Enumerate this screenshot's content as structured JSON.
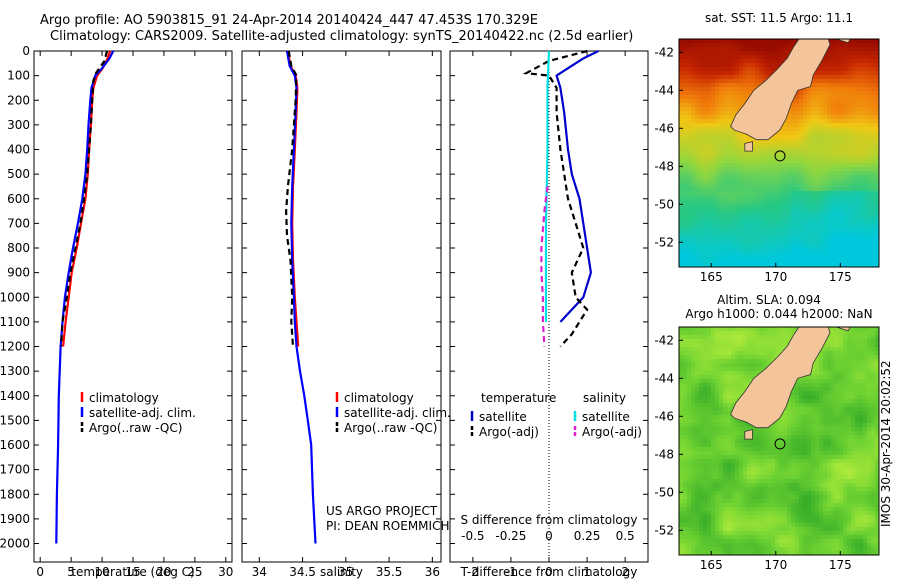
{
  "titles": {
    "line1": "Argo profile: AO 5903815_91 24-Apr-2014 20140424_447 47.453S 170.329E",
    "line2": "Climatology: CARS2009. Satellite-adjusted climatology: synTS_20140422.nc (2.5d earlier)"
  },
  "colors": {
    "climatology": "#ff0000",
    "satellite": "#0000ff",
    "argo": "#000000",
    "t_sat_diff": "#0000cc",
    "s_sat_diff": "#00e0e8",
    "s_argo_diff": "#e020d0",
    "land": "#f4c49a"
  },
  "depth_axis": {
    "ticks": [
      0,
      100,
      200,
      300,
      400,
      500,
      600,
      700,
      800,
      900,
      1000,
      1100,
      1200,
      1300,
      1400,
      1500,
      1600,
      1700,
      1800,
      1900,
      2000
    ],
    "range": [
      0,
      2075
    ]
  },
  "chart_data": [
    {
      "type": "line",
      "panel": "temperature",
      "xlabel": "temperature (deg C)",
      "xlim": [
        -1,
        31
      ],
      "xticks": [
        0,
        5,
        10,
        15,
        20,
        25,
        30
      ],
      "legend": [
        "climatology",
        "satellite-adj. clim.",
        "Argo(..raw -QC)"
      ],
      "series": [
        {
          "name": "climatology",
          "color_key": "climatology",
          "points": [
            [
              11.3,
              0
            ],
            [
              10.9,
              30
            ],
            [
              10.1,
              70
            ],
            [
              9.2,
              100
            ],
            [
              8.6,
              150
            ],
            [
              8.4,
              200
            ],
            [
              8.2,
              300
            ],
            [
              7.9,
              400
            ],
            [
              7.7,
              500
            ],
            [
              7.3,
              600
            ],
            [
              6.6,
              700
            ],
            [
              5.9,
              800
            ],
            [
              5.1,
              900
            ],
            [
              4.6,
              1000
            ],
            [
              4.1,
              1100
            ],
            [
              3.7,
              1200
            ]
          ]
        },
        {
          "name": "satellite-adj. clim.",
          "color_key": "satellite",
          "points": [
            [
              11.8,
              0
            ],
            [
              11.2,
              30
            ],
            [
              10.0,
              70
            ],
            [
              8.9,
              100
            ],
            [
              8.3,
              150
            ],
            [
              8.1,
              200
            ],
            [
              7.8,
              300
            ],
            [
              7.6,
              400
            ],
            [
              7.3,
              500
            ],
            [
              6.8,
              600
            ],
            [
              6.1,
              700
            ],
            [
              5.3,
              800
            ],
            [
              4.6,
              900
            ],
            [
              4.0,
              1000
            ],
            [
              3.6,
              1100
            ],
            [
              3.3,
              1200
            ],
            [
              3.0,
              1400
            ],
            [
              2.9,
              1600
            ],
            [
              2.7,
              1800
            ],
            [
              2.6,
              2000
            ]
          ]
        },
        {
          "name": "Argo(..raw -QC)",
          "color_key": "argo",
          "dash": true,
          "points": [
            [
              10.8,
              0
            ],
            [
              10.4,
              40
            ],
            [
              9.0,
              90
            ],
            [
              8.6,
              120
            ],
            [
              8.4,
              200
            ],
            [
              8.2,
              300
            ],
            [
              7.9,
              400
            ],
            [
              7.6,
              500
            ],
            [
              7.1,
              600
            ],
            [
              6.5,
              700
            ],
            [
              5.7,
              800
            ],
            [
              4.9,
              900
            ],
            [
              4.3,
              1000
            ],
            [
              3.6,
              1100
            ],
            [
              3.4,
              1200
            ]
          ]
        }
      ]
    },
    {
      "type": "line",
      "panel": "salinity",
      "xlabel": "salinity",
      "xlim": [
        33.8,
        36.1
      ],
      "xticks": [
        34,
        34.5,
        35,
        35.5,
        36
      ],
      "legend": [
        "climatology",
        "satellite-adj. clim.",
        "Argo(..raw -QC)"
      ],
      "annotation": [
        "US ARGO PROJECT",
        "PI: DEAN ROEMMICH"
      ],
      "series": [
        {
          "name": "climatology",
          "color_key": "climatology",
          "points": [
            [
              34.33,
              0
            ],
            [
              34.36,
              60
            ],
            [
              34.42,
              100
            ],
            [
              34.44,
              150
            ],
            [
              34.43,
              250
            ],
            [
              34.41,
              400
            ],
            [
              34.39,
              550
            ],
            [
              34.38,
              700
            ],
            [
              34.39,
              850
            ],
            [
              34.41,
              1000
            ],
            [
              34.43,
              1100
            ],
            [
              34.45,
              1200
            ]
          ]
        },
        {
          "name": "satellite-adj. clim.",
          "color_key": "satellite",
          "points": [
            [
              34.32,
              0
            ],
            [
              34.35,
              60
            ],
            [
              34.41,
              100
            ],
            [
              34.43,
              150
            ],
            [
              34.42,
              250
            ],
            [
              34.4,
              400
            ],
            [
              34.38,
              550
            ],
            [
              34.37,
              700
            ],
            [
              34.38,
              850
            ],
            [
              34.4,
              1000
            ],
            [
              34.41,
              1100
            ],
            [
              34.43,
              1200
            ],
            [
              34.47,
              1300
            ],
            [
              34.52,
              1400
            ],
            [
              34.56,
              1500
            ],
            [
              34.6,
              1600
            ],
            [
              34.62,
              1800
            ],
            [
              34.65,
              2000
            ]
          ]
        },
        {
          "name": "Argo(..raw -QC)",
          "color_key": "argo",
          "dash": true,
          "points": [
            [
              34.34,
              0
            ],
            [
              34.37,
              60
            ],
            [
              34.43,
              100
            ],
            [
              34.42,
              200
            ],
            [
              34.38,
              400
            ],
            [
              34.33,
              550
            ],
            [
              34.31,
              650
            ],
            [
              34.32,
              750
            ],
            [
              34.36,
              850
            ],
            [
              34.38,
              1000
            ],
            [
              34.37,
              1100
            ],
            [
              34.39,
              1200
            ]
          ]
        }
      ]
    },
    {
      "type": "line",
      "panel": "differences",
      "xlabel": "T difference from climatology",
      "xlabel2": "S difference from climatology",
      "xlim": [
        -2.6,
        2.6
      ],
      "xticks": [
        -2,
        -1,
        0,
        1,
        2
      ],
      "xticks2": [
        -0.5,
        -0.25,
        0,
        0.25,
        0.5
      ],
      "legend_headers": [
        "temperature",
        "salinity"
      ],
      "legend": [
        "satellite",
        "Argo(-adj)",
        "satellite",
        "Argo(-adj)"
      ],
      "series": [
        {
          "name": "satellite",
          "group": "temperature",
          "color_key": "t_sat_diff",
          "points": [
            [
              1.3,
              0
            ],
            [
              0.9,
              30
            ],
            [
              0.5,
              70
            ],
            [
              0.2,
              100
            ],
            [
              0.3,
              150
            ],
            [
              0.4,
              250
            ],
            [
              0.5,
              400
            ],
            [
              0.6,
              500
            ],
            [
              0.8,
              600
            ],
            [
              0.9,
              700
            ],
            [
              1.0,
              800
            ],
            [
              1.1,
              900
            ],
            [
              0.9,
              1000
            ],
            [
              0.6,
              1050
            ],
            [
              0.3,
              1100
            ]
          ]
        },
        {
          "name": "Argo(-adj)",
          "group": "temperature",
          "color_key": "argo",
          "dash": true,
          "points": [
            [
              1.0,
              0
            ],
            [
              0.0,
              40
            ],
            [
              -0.6,
              90
            ],
            [
              0.0,
              100
            ],
            [
              0.2,
              150
            ],
            [
              0.2,
              250
            ],
            [
              0.3,
              400
            ],
            [
              0.4,
              500
            ],
            [
              0.5,
              600
            ],
            [
              0.7,
              700
            ],
            [
              0.9,
              800
            ],
            [
              0.6,
              900
            ],
            [
              0.7,
              1000
            ],
            [
              1.0,
              1050
            ],
            [
              0.6,
              1150
            ],
            [
              0.3,
              1200
            ]
          ]
        },
        {
          "name": "satellite",
          "group": "salinity",
          "color_key": "s_sat_diff",
          "points": [
            [
              0.0,
              0
            ],
            [
              -0.01,
              150
            ],
            [
              -0.01,
              400
            ],
            [
              -0.02,
              700
            ],
            [
              -0.02,
              1000
            ],
            [
              -0.02,
              1100
            ]
          ]
        },
        {
          "name": "Argo(-adj)",
          "group": "salinity",
          "color_key": "s_argo_diff",
          "dash": true,
          "points": [
            [
              -0.01,
              550
            ],
            [
              -0.03,
              650
            ],
            [
              -0.05,
              800
            ],
            [
              -0.05,
              900
            ],
            [
              -0.04,
              1000
            ],
            [
              -0.04,
              1100
            ],
            [
              -0.03,
              1200
            ]
          ]
        }
      ]
    },
    {
      "type": "heatmap",
      "panel": "sst_map",
      "title": "sat. SST: 11.5 Argo: 11.1",
      "xticks": [
        165,
        170,
        175
      ],
      "yticks": [
        -42,
        -44,
        -46,
        -48,
        -50,
        -52
      ],
      "xlim": [
        162.5,
        178
      ],
      "ylim": [
        -53.3,
        -41.3
      ],
      "marker": [
        170.329,
        -47.453
      ]
    },
    {
      "type": "heatmap",
      "panel": "sla_map",
      "title_lines": [
        "Altim. SLA: 0.094",
        "Argo h1000: 0.044 h2000: NaN"
      ],
      "side_label": "IMOS 30-Apr-2014 20:02:52",
      "xticks": [
        165,
        170,
        175
      ],
      "yticks": [
        -42,
        -44,
        -46,
        -48,
        -50,
        -52
      ],
      "xlim": [
        162.5,
        178
      ],
      "ylim": [
        -53.3,
        -41.3
      ],
      "marker": [
        170.329,
        -47.453
      ]
    }
  ]
}
